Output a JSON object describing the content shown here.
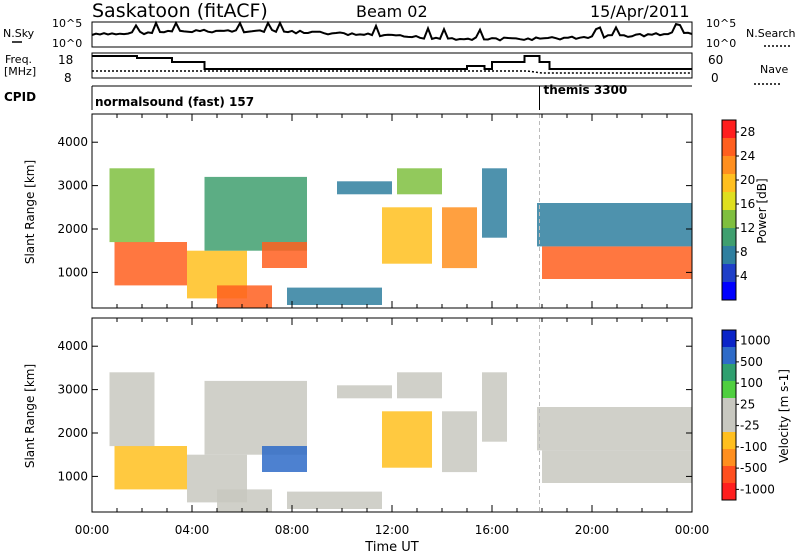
{
  "header": {
    "station": "Saskatoon (fitACF)",
    "beam": "Beam 02",
    "date": "15/Apr/2011"
  },
  "noise_panel": {
    "left_label": "N.Sky",
    "right_label": "N.Search",
    "left_ticks": [
      "10^5",
      "10^0"
    ],
    "right_ticks": [
      "10^5",
      "10^0"
    ]
  },
  "freq_panel": {
    "left_label_line1": "Freq.",
    "left_label_line2": "[MHz]",
    "right_label": "Nave",
    "left_ticks": [
      "18",
      "8"
    ],
    "right_ticks": [
      "60",
      "0"
    ]
  },
  "cpid": {
    "label": "CPID",
    "modes": [
      {
        "name": "normalsound (fast) 157",
        "start_hour": 0.0
      },
      {
        "name": "themis 3300",
        "start_hour": 17.9
      }
    ]
  },
  "x_axis": {
    "label": "Time UT",
    "tick_labels": [
      "00:00",
      "04:00",
      "08:00",
      "12:00",
      "16:00",
      "20:00",
      "00:00"
    ],
    "range": [
      0,
      24
    ]
  },
  "chart_data": [
    {
      "type": "heatmap",
      "title": "",
      "xlabel": "Time UT",
      "ylabel": "Slant Range [km]",
      "xlim": [
        0,
        24
      ],
      "ylim": [
        180,
        4650
      ],
      "y_ticks": [
        "1000",
        "2000",
        "3000",
        "4000"
      ],
      "colorbar": {
        "label": "Power [dB]",
        "ticks": [
          "4",
          "8",
          "12",
          "16",
          "20",
          "24",
          "28"
        ],
        "range": [
          0,
          30
        ],
        "colors": [
          "#0000ff",
          "#1f3fc8",
          "#2f7f9f",
          "#3f9f6f",
          "#7fbf3f",
          "#dfdf1f",
          "#ffbf1f",
          "#ff8f1f",
          "#ff5f1f",
          "#ff1f1f"
        ]
      },
      "echo_regions": [
        {
          "t0": 0.9,
          "t1": 3.8,
          "r0": 700,
          "r1": 1700,
          "value": 26
        },
        {
          "t0": 0.7,
          "t1": 2.5,
          "r0": 1700,
          "r1": 3400,
          "value": 12
        },
        {
          "t0": 3.8,
          "t1": 6.2,
          "r0": 400,
          "r1": 1500,
          "value": 20
        },
        {
          "t0": 5.0,
          "t1": 7.2,
          "r0": 180,
          "r1": 700,
          "value": 24
        },
        {
          "t0": 4.5,
          "t1": 8.6,
          "r0": 1500,
          "r1": 3200,
          "value": 11
        },
        {
          "t0": 6.8,
          "t1": 8.6,
          "r0": 1100,
          "r1": 1700,
          "value": 26
        },
        {
          "t0": 7.8,
          "t1": 11.6,
          "r0": 250,
          "r1": 650,
          "value": 6
        },
        {
          "t0": 9.8,
          "t1": 12.0,
          "r0": 2800,
          "r1": 3100,
          "value": 8
        },
        {
          "t0": 11.6,
          "t1": 13.6,
          "r0": 1200,
          "r1": 2500,
          "value": 18
        },
        {
          "t0": 12.2,
          "t1": 14.0,
          "r0": 2800,
          "r1": 3400,
          "value": 14
        },
        {
          "t0": 14.0,
          "t1": 15.4,
          "r0": 1100,
          "r1": 2500,
          "value": 22
        },
        {
          "t0": 15.6,
          "t1": 16.6,
          "r0": 1800,
          "r1": 3400,
          "value": 8
        },
        {
          "t0": 18.0,
          "t1": 24.0,
          "r0": 850,
          "r1": 1600,
          "value": 26
        },
        {
          "t0": 17.8,
          "t1": 24.0,
          "r0": 1600,
          "r1": 2600,
          "value": 8
        }
      ]
    },
    {
      "type": "heatmap",
      "title": "",
      "xlabel": "Time UT",
      "ylabel": "Slant Range [km]",
      "xlim": [
        0,
        24
      ],
      "ylim": [
        180,
        4650
      ],
      "y_ticks": [
        "1000",
        "2000",
        "3000",
        "4000"
      ],
      "colorbar": {
        "label": "Velocity [m s-1]",
        "ticks": [
          "1000",
          "500",
          "100",
          "25",
          "-25",
          "-100",
          "-500",
          "-1000"
        ],
        "range": [
          -1000,
          1000
        ],
        "colors": [
          "#0a24c8",
          "#2e6bc8",
          "#2f9f6f",
          "#4fcf3f",
          "#c8c8c0",
          "#c8c8c0",
          "#ffbf1f",
          "#ff8f1f",
          "#ff4f1f",
          "#ff1f1f"
        ]
      },
      "echo_regions": [
        {
          "t0": 0.9,
          "t1": 3.8,
          "r0": 700,
          "r1": 1700,
          "value": -300
        },
        {
          "t0": 0.7,
          "t1": 2.5,
          "r0": 1700,
          "r1": 3400,
          "value": 0
        },
        {
          "t0": 3.8,
          "t1": 6.2,
          "r0": 400,
          "r1": 1500,
          "value": 50
        },
        {
          "t0": 5.0,
          "t1": 7.2,
          "r0": 180,
          "r1": 700,
          "value": 0
        },
        {
          "t0": 4.5,
          "t1": 8.6,
          "r0": 1500,
          "r1": 3200,
          "value": 0
        },
        {
          "t0": 6.8,
          "t1": 8.6,
          "r0": 1100,
          "r1": 1700,
          "value": 700
        },
        {
          "t0": 7.8,
          "t1": 11.6,
          "r0": 250,
          "r1": 650,
          "value": -150
        },
        {
          "t0": 9.8,
          "t1": 12.0,
          "r0": 2800,
          "r1": 3100,
          "value": 0
        },
        {
          "t0": 11.6,
          "t1": 13.6,
          "r0": 1200,
          "r1": 2500,
          "value": -300
        },
        {
          "t0": 12.2,
          "t1": 14.0,
          "r0": 2800,
          "r1": 3400,
          "value": 0
        },
        {
          "t0": 14.0,
          "t1": 15.4,
          "r0": 1100,
          "r1": 2500,
          "value": 0
        },
        {
          "t0": 15.6,
          "t1": 16.6,
          "r0": 1800,
          "r1": 3400,
          "value": 0
        },
        {
          "t0": 18.0,
          "t1": 24.0,
          "r0": 850,
          "r1": 1600,
          "value": 0
        },
        {
          "t0": 17.8,
          "t1": 24.0,
          "r0": 1600,
          "r1": 2600,
          "value": 0
        }
      ]
    }
  ]
}
